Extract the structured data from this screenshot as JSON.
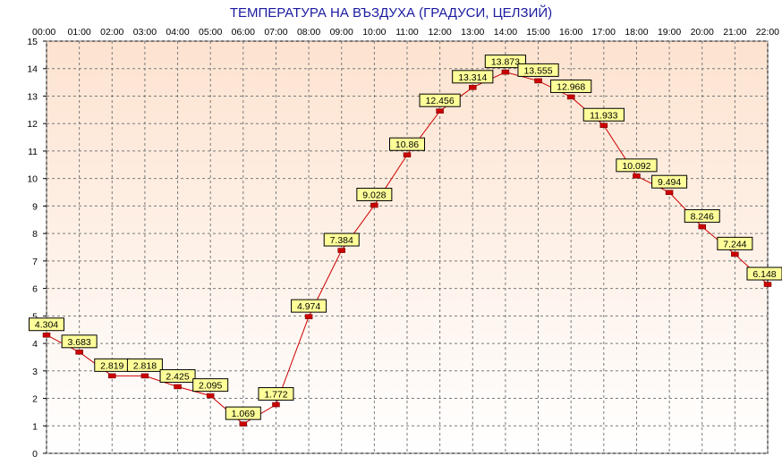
{
  "chart_data": {
    "type": "line",
    "title": "ТЕМПЕРАТУРА НА ВЪЗДУХА  (ГРАДУСИ, ЦЕЛЗИЙ)",
    "xlabel": "",
    "ylabel": "",
    "categories": [
      "00:00",
      "01:00",
      "02:00",
      "03:00",
      "04:00",
      "05:00",
      "06:00",
      "07:00",
      "08:00",
      "09:00",
      "10:00",
      "11:00",
      "12:00",
      "13:00",
      "14:00",
      "15:00",
      "16:00",
      "17:00",
      "18:00",
      "19:00",
      "20:00",
      "21:00",
      "22:00"
    ],
    "series": [
      {
        "values": [
          4.304,
          3.683,
          2.819,
          2.818,
          2.425,
          2.095,
          1.069,
          1.772,
          4.974,
          7.384,
          9.028,
          10.86,
          12.456,
          13.314,
          13.873,
          13.555,
          12.968,
          11.933,
          10.092,
          9.494,
          8.246,
          7.244,
          6.148
        ],
        "labels": [
          "4.304",
          "3.683",
          "2.819",
          "2.818",
          "2.425",
          "2.095",
          "1.069",
          "1.772",
          "4.974",
          "7.384",
          "9.028",
          "10.86",
          "12.456",
          "13.314",
          "13.873",
          "13.555",
          "12.968",
          "11.933",
          "10.092",
          "9.494",
          "8.246",
          "7.244",
          "6.148"
        ],
        "color": "#cc0000"
      }
    ],
    "ylim": [
      0,
      15
    ],
    "yticks": [
      0,
      1,
      2,
      3,
      4,
      5,
      6,
      7,
      8,
      9,
      10,
      11,
      12,
      13,
      14,
      15
    ],
    "xaxis_position": "top",
    "grid": true,
    "colors": {
      "background_top": "#fde3d0",
      "background_bottom": "#ffffff",
      "grid": "#7a7a7a",
      "label_fill": "#ffff99",
      "marker": "#cc0000",
      "title": "#1a1aa0"
    }
  }
}
